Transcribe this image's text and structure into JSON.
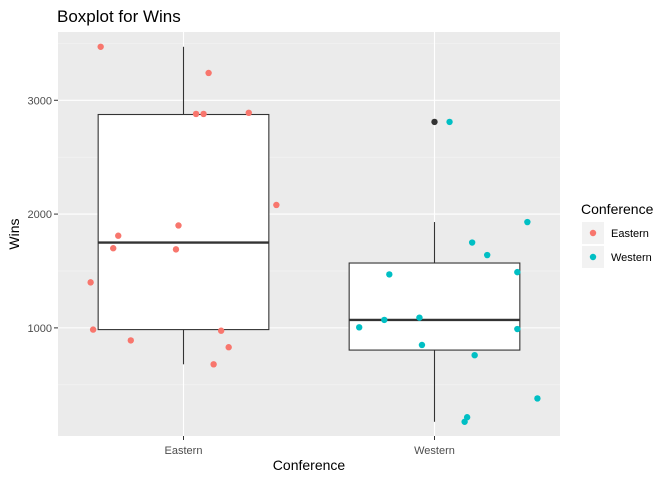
{
  "chart_data": {
    "type": "boxplot",
    "title": "Boxplot for Wins",
    "xlabel": "Conference",
    "ylabel": "Wins",
    "categories": [
      "Eastern",
      "Western"
    ],
    "ylim": [
      50,
      3600
    ],
    "yticks": [
      1000,
      2000,
      3000
    ],
    "grid": true,
    "legend": {
      "title": "Conference",
      "position": "right",
      "entries": [
        {
          "label": "Eastern",
          "color": "#F8766D"
        },
        {
          "label": "Western",
          "color": "#00BFC4"
        }
      ]
    },
    "boxes": [
      {
        "category": "Eastern",
        "min": 680,
        "q1": 985,
        "median": 1750,
        "q3": 2875,
        "max": 3470,
        "outliers": []
      },
      {
        "category": "Western",
        "min": 175,
        "q1": 805,
        "median": 1070,
        "q3": 1570,
        "max": 1930,
        "outliers": [
          2810
        ]
      }
    ],
    "points": {
      "Eastern": [
        {
          "jitter": -0.33,
          "y": 3470
        },
        {
          "jitter": 0.1,
          "y": 3240
        },
        {
          "jitter": 0.05,
          "y": 2880
        },
        {
          "jitter": 0.08,
          "y": 2880
        },
        {
          "jitter": 0.26,
          "y": 2890
        },
        {
          "jitter": 0.37,
          "y": 2080
        },
        {
          "jitter": -0.02,
          "y": 1900
        },
        {
          "jitter": -0.26,
          "y": 1810
        },
        {
          "jitter": -0.28,
          "y": 1700
        },
        {
          "jitter": -0.03,
          "y": 1690
        },
        {
          "jitter": -0.37,
          "y": 1400
        },
        {
          "jitter": -0.36,
          "y": 985
        },
        {
          "jitter": 0.15,
          "y": 975
        },
        {
          "jitter": -0.21,
          "y": 890
        },
        {
          "jitter": 0.18,
          "y": 830
        },
        {
          "jitter": 0.12,
          "y": 680
        }
      ],
      "Western": [
        {
          "jitter": 0.06,
          "y": 2810
        },
        {
          "jitter": 0.37,
          "y": 1930
        },
        {
          "jitter": 0.15,
          "y": 1750
        },
        {
          "jitter": 0.21,
          "y": 1640
        },
        {
          "jitter": 0.33,
          "y": 1490
        },
        {
          "jitter": -0.18,
          "y": 1470
        },
        {
          "jitter": -0.2,
          "y": 1070
        },
        {
          "jitter": -0.06,
          "y": 1090
        },
        {
          "jitter": -0.3,
          "y": 1005
        },
        {
          "jitter": 0.33,
          "y": 990
        },
        {
          "jitter": -0.05,
          "y": 850
        },
        {
          "jitter": 0.16,
          "y": 760
        },
        {
          "jitter": 0.41,
          "y": 380
        },
        {
          "jitter": 0.13,
          "y": 215
        },
        {
          "jitter": 0.12,
          "y": 175
        }
      ]
    }
  }
}
